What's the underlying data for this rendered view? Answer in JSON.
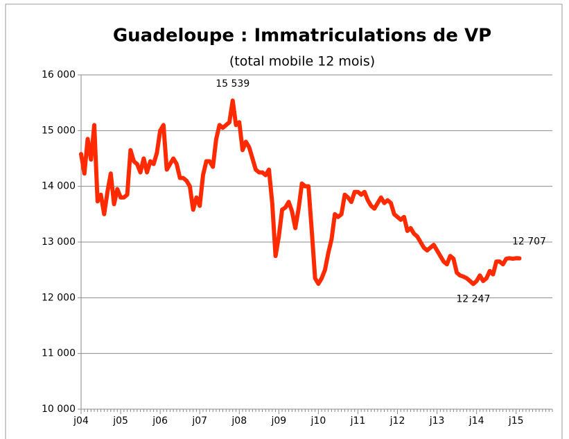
{
  "chart_data": {
    "type": "line",
    "title": "Guadeloupe : Immatriculations de VP",
    "subtitle": "(total mobile 12 mois)",
    "categories": [
      "j04",
      null,
      null,
      null,
      null,
      null,
      null,
      null,
      null,
      null,
      null,
      null,
      "j05",
      null,
      null,
      null,
      null,
      null,
      null,
      null,
      null,
      null,
      null,
      null,
      "j06",
      null,
      null,
      null,
      null,
      null,
      null,
      null,
      null,
      null,
      null,
      null,
      "j07",
      null,
      null,
      null,
      null,
      null,
      null,
      null,
      null,
      null,
      null,
      null,
      "j08",
      null,
      null,
      null,
      null,
      null,
      null,
      null,
      null,
      null,
      null,
      null,
      "j09",
      null,
      null,
      null,
      null,
      null,
      null,
      null,
      null,
      null,
      null,
      null,
      "j10",
      null,
      null,
      null,
      null,
      null,
      null,
      null,
      null,
      null,
      null,
      null,
      "j11",
      null,
      null,
      null,
      null,
      null,
      null,
      null,
      null,
      null,
      null,
      null,
      "j12",
      null,
      null,
      null,
      null,
      null,
      null,
      null,
      null,
      null,
      null,
      null,
      "j13",
      null,
      null,
      null,
      null,
      null,
      null,
      null,
      null,
      null,
      null,
      null,
      "j14",
      null,
      null,
      null,
      null,
      null,
      null,
      null,
      null,
      null,
      null,
      null,
      "j15",
      null,
      null,
      null,
      null,
      null,
      null,
      null,
      null,
      null,
      null,
      null
    ],
    "values": [
      14580,
      14230,
      14850,
      14480,
      15100,
      13730,
      13850,
      13500,
      13900,
      14230,
      13680,
      13950,
      13800,
      13800,
      13850,
      14650,
      14450,
      14400,
      14250,
      14500,
      14250,
      14450,
      14400,
      14600,
      15000,
      15100,
      14300,
      14400,
      14500,
      14400,
      14150,
      14150,
      14100,
      14000,
      13580,
      13800,
      13650,
      14200,
      14450,
      14450,
      14350,
      14850,
      15100,
      15050,
      15100,
      15150,
      15539,
      15100,
      15150,
      14650,
      14800,
      14700,
      14500,
      14300,
      14250,
      14250,
      14200,
      14300,
      13700,
      12750,
      13100,
      13580,
      13620,
      13720,
      13550,
      13250,
      13600,
      14050,
      14000,
      14000,
      13200,
      12350,
      12250,
      12350,
      12500,
      12800,
      13050,
      13500,
      13450,
      13500,
      13850,
      13800,
      13720,
      13900,
      13900,
      13850,
      13900,
      13750,
      13650,
      13600,
      13700,
      13800,
      13700,
      13750,
      13700,
      13500,
      13450,
      13400,
      13450,
      13200,
      13250,
      13150,
      13100,
      13000,
      12900,
      12850,
      12900,
      12950,
      12850,
      12750,
      12650,
      12600,
      12750,
      12700,
      12450,
      12400,
      12380,
      12350,
      12300,
      12247,
      12300,
      12400,
      12300,
      12350,
      12480,
      12420,
      12650,
      12650,
      12600,
      12700,
      12710,
      12700,
      12710,
      12707,
      null,
      null,
      null,
      null,
      null,
      null,
      null,
      null,
      null,
      null
    ],
    "value_labels": [
      null,
      null,
      null,
      null,
      null,
      null,
      null,
      null,
      null,
      null,
      null,
      null,
      null,
      null,
      null,
      null,
      null,
      null,
      null,
      null,
      null,
      null,
      null,
      null,
      null,
      null,
      null,
      null,
      null,
      null,
      null,
      null,
      null,
      null,
      null,
      null,
      null,
      null,
      null,
      null,
      null,
      null,
      null,
      null,
      null,
      null,
      "15 539",
      null,
      null,
      null,
      null,
      null,
      null,
      null,
      null,
      null,
      null,
      null,
      null,
      null,
      null,
      null,
      null,
      null,
      null,
      null,
      null,
      null,
      null,
      null,
      null,
      null,
      null,
      null,
      null,
      null,
      null,
      null,
      null,
      null,
      null,
      null,
      null,
      null,
      null,
      null,
      null,
      null,
      null,
      null,
      null,
      null,
      null,
      null,
      null,
      null,
      null,
      null,
      null,
      null,
      null,
      null,
      null,
      null,
      null,
      null,
      null,
      null,
      null,
      null,
      null,
      null,
      null,
      null,
      null,
      null,
      null,
      null,
      null,
      "12 247",
      null,
      null,
      null,
      null,
      null,
      null,
      null,
      null,
      null,
      null,
      null,
      null,
      null,
      "12 707",
      null,
      null,
      null,
      null,
      null,
      null,
      null,
      null,
      null,
      null
    ],
    "color": "#ff2a00",
    "ylim": [
      10000,
      16000
    ],
    "yticks": [
      {
        "value": 10000,
        "label": "10 000"
      },
      {
        "value": 11000,
        "label": "11 000"
      },
      {
        "value": 12000,
        "label": "12 000"
      },
      {
        "value": 13000,
        "label": "13 000"
      },
      {
        "value": 14000,
        "label": "14 000"
      },
      {
        "value": 15000,
        "label": "15 000"
      },
      {
        "value": 16000,
        "label": "16 000"
      }
    ],
    "grid": true
  }
}
